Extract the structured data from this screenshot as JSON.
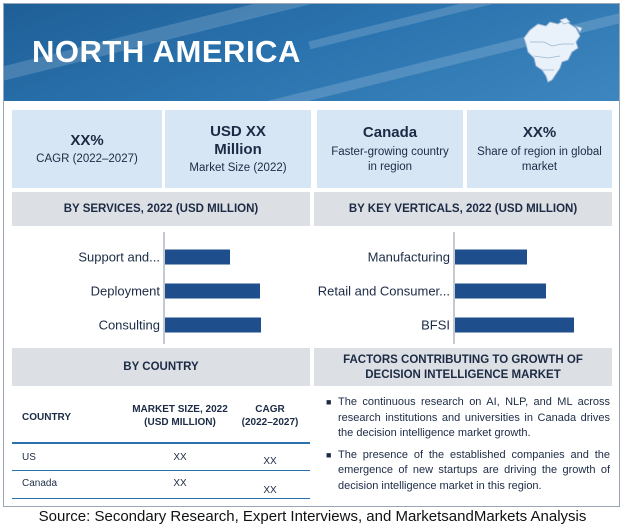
{
  "banner": {
    "title": "NORTH AMERICA",
    "map_icon": "north-america-map-icon"
  },
  "kpis": [
    {
      "big": "XX%",
      "small": "CAGR (2022–2027)"
    },
    {
      "big": "USD XX Million",
      "big_lines": [
        "USD XX",
        "Million"
      ],
      "small": "Market Size (2022)"
    },
    {
      "big": "Canada",
      "small": "Faster-growing country in region",
      "small_lines": [
        "Faster-growing country",
        "in region"
      ]
    },
    {
      "big": "XX%",
      "small": "Share of region in global market",
      "small_lines": [
        "Share of region in global",
        "market"
      ]
    }
  ],
  "services_header": "BY SERVICES, 2022 (USD MILLION)",
  "verticals_header": "BY KEY VERTICALS, 2022 (USD MILLION)",
  "country_header": "BY COUNTRY",
  "factors_header": "FACTORS CONTRIBUTING TO GROWTH OF DECISION INTELLIGENCE  MARKET",
  "factors_header_lines": [
    "FACTORS CONTRIBUTING TO GROWTH OF",
    "DECISION INTELLIGENCE  MARKET"
  ],
  "table": {
    "columns": [
      "COUNTRY",
      "MARKET SIZE, 2022 (USD MILLION)",
      "CAGR (2022–2027)"
    ],
    "column_lines": [
      [
        "COUNTRY"
      ],
      [
        "MARKET SIZE, 2022",
        "(USD MILLION)"
      ],
      [
        "CAGR",
        "(2022–2027)"
      ]
    ],
    "rows": [
      {
        "country": "US",
        "market_size": "XX",
        "cagr": "XX"
      },
      {
        "country": "Canada",
        "market_size": "XX",
        "cagr": "XX"
      }
    ]
  },
  "factors": [
    "The continuous research on AI, NLP, and ML across research institutions and universities in Canada drives the decision intelligence  market growth.",
    "The presence of the established companies and the emergence of new startups are driving the growth of decision intelligence  market in this region."
  ],
  "source": "Source: Secondary Research, Expert Interviews, and MarketsandMarkets Analysis",
  "colors": {
    "banner": "#2a72ad",
    "bar": "#1f4e8c",
    "kpi_bg": "#d6e6f4",
    "section_bg": "#dcdfe3",
    "table_rule": "#2a72ad"
  },
  "chart_data": [
    {
      "type": "bar",
      "orientation": "horizontal",
      "categories": [
        "Support and...",
        "Deployment",
        "Consulting"
      ],
      "values": [
        65,
        95,
        96
      ],
      "value_scale": "relative (no axis printed)"
    },
    {
      "type": "bar",
      "orientation": "horizontal",
      "categories": [
        "Manufacturing",
        "Retail and Consumer...",
        "BFSI"
      ],
      "values": [
        72,
        91,
        119
      ],
      "value_scale": "relative (no axis printed)"
    }
  ]
}
